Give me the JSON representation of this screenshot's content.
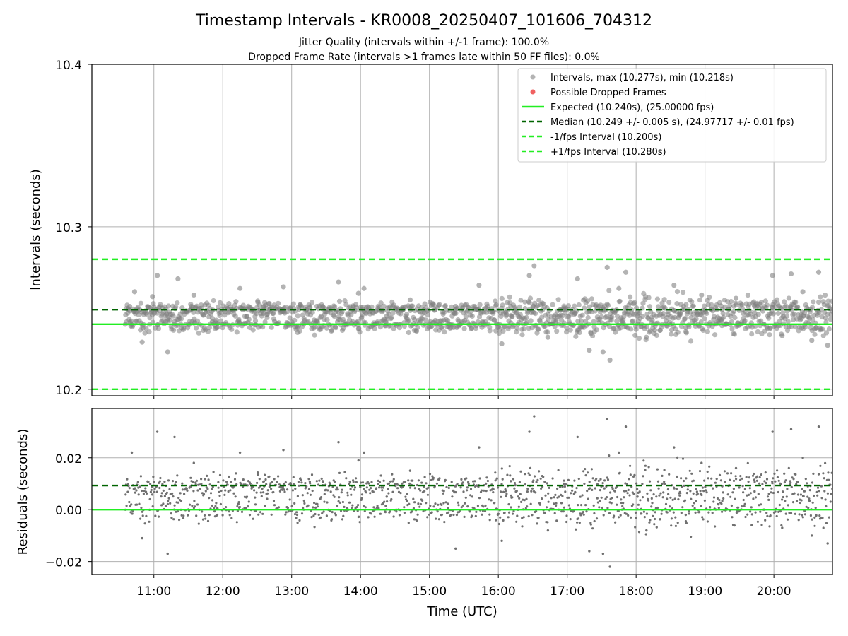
{
  "chart_data": [
    {
      "type": "scatter",
      "title": "Timestamp Intervals - KR0008_20250407_101606_704312",
      "subtitle_lines": [
        "Jitter Quality (intervals within +/-1 frame): 100.0%",
        "Dropped Frame Rate (intervals >1 frames late within 50 FF files): 0.0%"
      ],
      "xlabel": "",
      "ylabel": "Intervals (seconds)",
      "xlim_hours": [
        10.1,
        20.85
      ],
      "ylim": [
        10.196,
        10.4
      ],
      "yticks": [
        10.2,
        10.3,
        10.4
      ],
      "ytick_labels": [
        "10.2",
        "10.3",
        "10.4"
      ],
      "grid": true,
      "legend_position": "top-right",
      "series": [
        {
          "name": "Intervals, max (10.277s), min (10.218s)",
          "kind": "scatter",
          "color": "#808080",
          "x": [
            10.65,
            10.72,
            10.83,
            10.98,
            11.05,
            11.2,
            11.35,
            11.58,
            11.92,
            12.25,
            12.6,
            12.88,
            13.1,
            13.45,
            13.68,
            13.97,
            14.05,
            14.38,
            14.72,
            15.05,
            15.38,
            15.72,
            15.97,
            16.05,
            16.18,
            16.45,
            16.52,
            16.72,
            16.95,
            17.15,
            17.32,
            17.52,
            17.58,
            17.62,
            17.75,
            17.85,
            18.02,
            18.15,
            18.38,
            18.55,
            18.72,
            18.95,
            19.25,
            19.45,
            19.72,
            19.98,
            20.12,
            20.25,
            20.42,
            20.55,
            20.65,
            20.78
          ],
          "y": [
            10.251,
            10.26,
            10.229,
            10.257,
            10.27,
            10.223,
            10.268,
            10.258,
            10.238,
            10.262,
            10.249,
            10.263,
            10.239,
            10.251,
            10.266,
            10.259,
            10.262,
            10.245,
            10.255,
            10.241,
            10.251,
            10.264,
            10.252,
            10.228,
            10.251,
            10.27,
            10.276,
            10.232,
            10.25,
            10.268,
            10.224,
            10.223,
            10.275,
            10.218,
            10.262,
            10.272,
            10.245,
            10.232,
            10.25,
            10.264,
            10.238,
            10.258,
            10.249,
            10.256,
            10.247,
            10.27,
            10.233,
            10.271,
            10.26,
            10.23,
            10.272,
            10.227
          ]
        },
        {
          "name": "Possible Dropped Frames",
          "kind": "scatter",
          "color": "#f06060",
          "x": [],
          "y": []
        },
        {
          "name": "Expected (10.240s), (25.00000 fps)",
          "kind": "hline",
          "value": 10.24,
          "color": "#22ee22",
          "dash": "solid"
        },
        {
          "name": "Median (10.249 +/- 0.005 s), (24.97717 +/- 0.01 fps)",
          "kind": "hline",
          "value": 10.249,
          "color": "#006400",
          "dash": "dashed"
        },
        {
          "name": "-1/fps Interval (10.200s)",
          "kind": "hline",
          "value": 10.2,
          "color": "#22ee22",
          "dash": "dashed"
        },
        {
          "name": "+1/fps Interval (10.280s)",
          "kind": "hline",
          "value": 10.28,
          "color": "#22ee22",
          "dash": "dashed"
        }
      ]
    },
    {
      "type": "scatter",
      "title": "",
      "xlabel": "Time (UTC)",
      "ylabel": "Residuals (seconds)",
      "xlim_hours": [
        10.1,
        20.85
      ],
      "ylim": [
        -0.025,
        0.039
      ],
      "xticks_hours": [
        11,
        12,
        13,
        14,
        15,
        16,
        17,
        18,
        19,
        20
      ],
      "xtick_labels": [
        "11:00",
        "12:00",
        "13:00",
        "14:00",
        "15:00",
        "16:00",
        "17:00",
        "18:00",
        "19:00",
        "20:00"
      ],
      "yticks": [
        -0.02,
        0.0,
        0.02
      ],
      "ytick_labels": [
        "−0.02",
        "0.00",
        "0.02"
      ],
      "grid": true,
      "series": [
        {
          "name": "Residuals",
          "kind": "scatter",
          "color": "#808080",
          "x": [
            10.68,
            10.83,
            11.05,
            11.2,
            11.3,
            11.58,
            11.92,
            12.25,
            12.6,
            12.88,
            13.45,
            13.68,
            13.97,
            14.05,
            14.38,
            14.72,
            15.38,
            15.72,
            15.98,
            16.05,
            16.18,
            16.45,
            16.52,
            16.72,
            16.95,
            17.15,
            17.32,
            17.52,
            17.58,
            17.62,
            17.75,
            17.85,
            18.02,
            18.15,
            18.38,
            18.55,
            18.72,
            18.95,
            19.25,
            19.45,
            19.72,
            19.98,
            20.12,
            20.25,
            20.42,
            20.55,
            20.65,
            20.78
          ],
          "y": [
            0.022,
            -0.011,
            0.03,
            -0.017,
            0.028,
            0.018,
            -0.002,
            0.022,
            0.009,
            0.023,
            0.011,
            0.026,
            0.019,
            0.022,
            0.005,
            0.015,
            -0.015,
            0.024,
            0.012,
            -0.012,
            0.011,
            0.03,
            0.036,
            -0.008,
            0.01,
            0.028,
            -0.016,
            -0.017,
            0.035,
            -0.022,
            0.022,
            0.032,
            0.005,
            -0.008,
            0.01,
            0.024,
            -0.002,
            0.018,
            0.009,
            0.016,
            0.007,
            0.03,
            -0.007,
            0.031,
            0.02,
            -0.01,
            0.032,
            -0.013
          ]
        },
        {
          "name": "Median residual",
          "kind": "hline",
          "value": 0.0093,
          "color": "#006400",
          "dash": "dashed"
        },
        {
          "name": "Zero",
          "kind": "hline",
          "value": 0.0,
          "color": "#22ee22",
          "dash": "solid"
        }
      ]
    }
  ]
}
